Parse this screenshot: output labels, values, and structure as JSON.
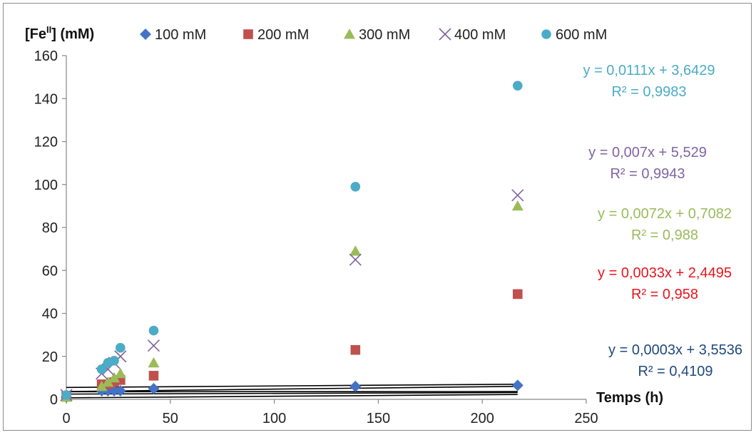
{
  "chart_data": {
    "type": "scatter",
    "title": "",
    "xlabel": "Temps (h)",
    "ylabel_main": "[Fe",
    "ylabel_sup": "II",
    "ylabel_rest": "] (mM)",
    "xlim": [
      0,
      250
    ],
    "ylim": [
      0,
      160
    ],
    "x_ticks": [
      "0",
      "50",
      "100",
      "150",
      "200",
      "250"
    ],
    "y_ticks": [
      "0",
      "20",
      "40",
      "60",
      "80",
      "100",
      "120",
      "140",
      "160"
    ],
    "grid": false,
    "legend_position": "top",
    "series": [
      {
        "name": "100 mM",
        "marker": "diamond",
        "color": "#4472C4",
        "points": [
          [
            0,
            1
          ],
          [
            17,
            4
          ],
          [
            20,
            4
          ],
          [
            23,
            4
          ],
          [
            26,
            4
          ],
          [
            42,
            5
          ],
          [
            139,
            6
          ],
          [
            217,
            6.5
          ]
        ],
        "trendline": {
          "slope": 0.0003,
          "intercept": 3.5536
        },
        "equation": "y = 0,0003x + 3,5536",
        "r2": "R² = 0,4109",
        "label_color": "#1F497D"
      },
      {
        "name": "200 mM",
        "marker": "square",
        "color": "#C0504D",
        "points": [
          [
            0,
            1.5
          ],
          [
            17,
            7
          ],
          [
            20,
            7
          ],
          [
            23,
            8
          ],
          [
            26,
            9
          ],
          [
            42,
            11
          ],
          [
            139,
            23
          ],
          [
            217,
            49
          ]
        ],
        "trendline": {
          "slope": 0.0033,
          "intercept": 2.4495
        },
        "equation": "y = 0,0033x + 2,4495",
        "r2": "R² = 0,958",
        "label_color": "#E8141B"
      },
      {
        "name": "300 mM",
        "marker": "triangle",
        "color": "#9BBB59",
        "points": [
          [
            0,
            1
          ],
          [
            17,
            6
          ],
          [
            20,
            8
          ],
          [
            23,
            10
          ],
          [
            26,
            12
          ],
          [
            42,
            17
          ],
          [
            139,
            69
          ],
          [
            217,
            90
          ]
        ],
        "trendline": {
          "slope": 0.0072,
          "intercept": 0.7082
        },
        "equation": "y = 0,0072x + 0,7082",
        "r2": "R² = 0,988",
        "label_color": "#9BBB59"
      },
      {
        "name": "400 mM",
        "marker": "x",
        "color": "#8064A2",
        "points": [
          [
            0,
            2
          ],
          [
            17,
            12
          ],
          [
            20,
            14
          ],
          [
            23,
            17
          ],
          [
            26,
            20
          ],
          [
            42,
            25
          ],
          [
            139,
            65
          ],
          [
            217,
            95
          ]
        ],
        "trendline": {
          "slope": 0.007,
          "intercept": 5.529
        },
        "equation": "y = 0,007x + 5,529",
        "r2": "R² = 0,9943",
        "label_color": "#8064A2"
      },
      {
        "name": "600 mM",
        "marker": "circle",
        "color": "#4BACC6",
        "points": [
          [
            0,
            2
          ],
          [
            17,
            14
          ],
          [
            20,
            17
          ],
          [
            23,
            18
          ],
          [
            26,
            24
          ],
          [
            42,
            32
          ],
          [
            139,
            99
          ],
          [
            217,
            146
          ]
        ],
        "trendline": {
          "slope": 0.0111,
          "intercept": 3.6429
        },
        "equation": "y = 0,0111x + 3,6429",
        "r2": "R² = 0,9983",
        "label_color": "#4BACC6"
      }
    ]
  }
}
